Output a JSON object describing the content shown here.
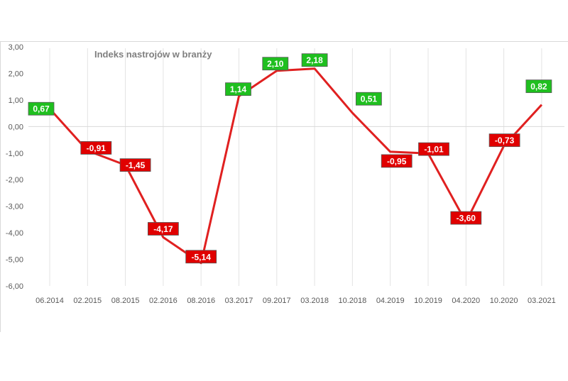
{
  "chart_data": {
    "type": "line",
    "title": "Indeks nastrojów  w branży",
    "categories": [
      "06.2014",
      "02.2015",
      "08.2015",
      "02.2016",
      "08.2016",
      "03.2017",
      "09.2017",
      "03.2018",
      "10.2018",
      "04.2019",
      "10.2019",
      "04.2020",
      "10.2020",
      "03.2021"
    ],
    "series": [
      {
        "values": [
          0.67,
          -0.91,
          -1.45,
          -4.17,
          -5.14,
          1.14,
          2.1,
          2.18,
          0.51,
          -0.95,
          -1.01,
          -3.6,
          -0.73,
          0.82
        ]
      }
    ],
    "data_labels": [
      "0,67",
      "-0,91",
      "-1,45",
      "-4,17",
      "-5,14",
      "1,14",
      "2,10",
      "2,18",
      "0,51",
      "-0,95",
      "-1,01",
      "-3,60",
      "-0,73",
      "0,82"
    ],
    "ylim": [
      -6,
      3
    ],
    "y_ticks": [
      3,
      2,
      1,
      0,
      -1,
      -2,
      -3,
      -4,
      -5,
      -6
    ],
    "y_tick_labels": [
      "3,00",
      "2,00",
      "1,00",
      "0,00",
      "-1,00",
      "-2,00",
      "-3,00",
      "-4,00",
      "-5,00",
      "-6,00"
    ],
    "xlabel": "",
    "ylabel": "",
    "grid": "vertical",
    "legend": "none",
    "colors": {
      "line": "#e02020",
      "positive_label_bg": "#1fbf1f",
      "negative_label_bg": "#e00000",
      "label_text": "#ffffff",
      "grid": "#e3e3e3",
      "axis_text": "#595959",
      "title_text": "#7f7f7f"
    }
  }
}
